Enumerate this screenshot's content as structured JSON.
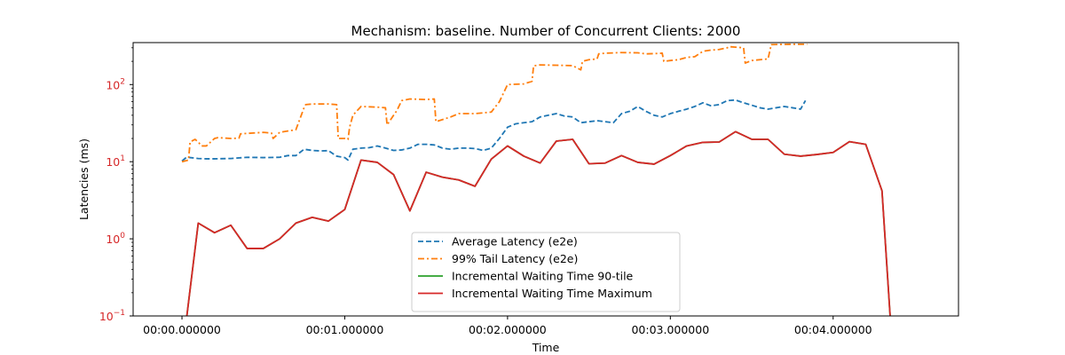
{
  "chart_data": {
    "type": "line",
    "title": "Mechanism: baseline. Number of Concurrent Clients: 2000",
    "xlabel": "Time",
    "ylabel": "Latencies (ms)",
    "ylabel_color": "#d62728",
    "yscale": "log",
    "xlim": [
      -0.3,
      4.77
    ],
    "ylim": [
      0.1,
      350
    ],
    "x_unit": "seconds",
    "xticks": [
      {
        "value": 0,
        "label": "00:00.000000"
      },
      {
        "value": 1,
        "label": "00:01.000000"
      },
      {
        "value": 2,
        "label": "00:02.000000"
      },
      {
        "value": 3,
        "label": "00:03.000000"
      },
      {
        "value": 4,
        "label": "00:04.000000"
      }
    ],
    "yticks": [
      {
        "value": 0.1,
        "base": "10",
        "exp": "−1"
      },
      {
        "value": 1,
        "base": "10",
        "exp": "0"
      },
      {
        "value": 10,
        "base": "10",
        "exp": "1"
      },
      {
        "value": 100,
        "base": "10",
        "exp": "2"
      }
    ],
    "legend": {
      "position": "lower center"
    },
    "series": [
      {
        "name": "Average Latency (e2e)",
        "color": "#1f77b4",
        "style": "dashed",
        "x": [
          0.0,
          0.03,
          0.05,
          0.1,
          0.15,
          0.2,
          0.3,
          0.4,
          0.5,
          0.6,
          0.65,
          0.7,
          0.75,
          0.8,
          0.85,
          0.9,
          0.95,
          1.0,
          1.02,
          1.05,
          1.1,
          1.15,
          1.2,
          1.25,
          1.3,
          1.35,
          1.4,
          1.45,
          1.5,
          1.55,
          1.6,
          1.65,
          1.7,
          1.75,
          1.8,
          1.85,
          1.9,
          1.95,
          2.0,
          2.05,
          2.1,
          2.15,
          2.2,
          2.25,
          2.3,
          2.35,
          2.4,
          2.45,
          2.5,
          2.55,
          2.6,
          2.65,
          2.7,
          2.75,
          2.8,
          2.85,
          2.9,
          2.95,
          3.0,
          3.05,
          3.1,
          3.15,
          3.2,
          3.25,
          3.3,
          3.35,
          3.4,
          3.45,
          3.5,
          3.55,
          3.6,
          3.65,
          3.7,
          3.75,
          3.8,
          3.83
        ],
        "y": [
          10.2,
          11.5,
          11.3,
          11.0,
          10.9,
          10.9,
          11.0,
          11.4,
          11.3,
          11.4,
          12.0,
          12.0,
          14.5,
          14.0,
          13.8,
          13.9,
          11.8,
          11.3,
          10.5,
          14.5,
          15.0,
          15.2,
          16.0,
          15.0,
          14.0,
          14.2,
          15.0,
          16.8,
          16.8,
          16.5,
          15.0,
          14.5,
          15.0,
          15.0,
          14.8,
          14.0,
          15.0,
          20.0,
          28.0,
          31.0,
          32.0,
          33.0,
          38.0,
          40.0,
          42.0,
          39.0,
          38.0,
          32.0,
          33.0,
          34.0,
          33.0,
          32.0,
          42.0,
          45.0,
          52.0,
          45.0,
          40.0,
          38.0,
          42.0,
          45.0,
          48.0,
          52.0,
          58.0,
          53.0,
          55.0,
          62.0,
          63.0,
          58.0,
          54.0,
          50.0,
          48.0,
          50.0,
          52.0,
          50.0,
          48.0,
          62.0
        ]
      },
      {
        "name": "99% Tail Latency (e2e)",
        "color": "#ff7f0e",
        "style": "dashdot",
        "x": [
          0.0,
          0.04,
          0.05,
          0.08,
          0.1,
          0.12,
          0.15,
          0.2,
          0.22,
          0.3,
          0.35,
          0.36,
          0.5,
          0.55,
          0.56,
          0.6,
          0.7,
          0.75,
          0.76,
          0.8,
          0.9,
          0.95,
          0.96,
          1.0,
          1.02,
          1.03,
          1.05,
          1.1,
          1.2,
          1.25,
          1.26,
          1.3,
          1.32,
          1.35,
          1.4,
          1.5,
          1.55,
          1.56,
          1.65,
          1.7,
          1.8,
          1.9,
          1.95,
          2.0,
          2.1,
          2.15,
          2.16,
          2.2,
          2.3,
          2.4,
          2.45,
          2.46,
          2.5,
          2.55,
          2.56,
          2.6,
          2.7,
          2.8,
          2.85,
          2.9,
          2.95,
          2.96,
          3.0,
          3.05,
          3.1,
          3.15,
          3.2,
          3.25,
          3.3,
          3.35,
          3.36,
          3.45,
          3.46,
          3.5,
          3.6,
          3.62,
          3.7,
          3.75,
          3.8,
          3.84
        ],
        "y": [
          10.0,
          10.5,
          18.0,
          19.5,
          18.0,
          16.0,
          16.0,
          20.0,
          20.5,
          20.0,
          20.2,
          23.0,
          24.0,
          23.5,
          20.0,
          24.0,
          26.0,
          50.0,
          55.0,
          56.0,
          56.0,
          55.0,
          20.0,
          20.0,
          19.5,
          28.0,
          40.0,
          52.0,
          51.0,
          50.0,
          30.0,
          40.0,
          46.0,
          62.0,
          65.0,
          64.0,
          65.0,
          33.0,
          38.0,
          42.0,
          42.0,
          44.0,
          60.0,
          100.0,
          102.0,
          110.0,
          175.0,
          180.0,
          178.0,
          176.0,
          155.0,
          200.0,
          210.0,
          215.0,
          250.0,
          255.0,
          260.0,
          258.0,
          250.0,
          252.0,
          255.0,
          200.0,
          205.0,
          210.0,
          225.0,
          230.0,
          270.0,
          280.0,
          285.0,
          300.0,
          310.0,
          300.0,
          190.0,
          205.0,
          215.0,
          330.0,
          332.0,
          333.0,
          333.0,
          333.0
        ]
      },
      {
        "name": "Incremental Waiting Time 90-tile",
        "color": "#2ca02c",
        "style": "solid",
        "x": [
          0.0,
          0.03,
          0.1,
          0.2,
          0.3,
          0.4,
          0.5,
          0.6,
          0.7,
          0.8,
          0.9,
          1.0,
          1.1,
          1.2,
          1.3,
          1.4,
          1.5,
          1.6,
          1.7,
          1.8,
          1.9,
          2.0,
          2.1,
          2.2,
          2.3,
          2.4,
          2.5,
          2.6,
          2.7,
          2.8,
          2.9,
          3.0,
          3.1,
          3.2,
          3.3,
          3.4,
          3.5,
          3.6,
          3.7,
          3.8,
          3.9,
          4.0,
          4.1,
          4.2,
          4.3,
          4.35,
          4.4
        ],
        "y": [
          0.08,
          0.1,
          1.6,
          1.2,
          1.5,
          0.75,
          0.75,
          1.0,
          1.6,
          1.9,
          1.7,
          2.4,
          10.5,
          9.8,
          6.8,
          2.3,
          7.3,
          6.3,
          5.8,
          4.8,
          10.8,
          16.0,
          11.8,
          9.6,
          18.5,
          19.5,
          9.4,
          9.6,
          12.0,
          9.8,
          9.3,
          12.0,
          16.0,
          17.8,
          18.0,
          24.5,
          19.5,
          19.5,
          12.5,
          11.8,
          12.4,
          13.2,
          18.2,
          16.8,
          4.2,
          0.1,
          0.05
        ]
      },
      {
        "name": "Incremental Waiting Time Maximum",
        "color": "#d62728",
        "style": "solid",
        "x": [
          0.0,
          0.03,
          0.1,
          0.2,
          0.3,
          0.4,
          0.5,
          0.6,
          0.7,
          0.8,
          0.9,
          1.0,
          1.1,
          1.2,
          1.3,
          1.4,
          1.5,
          1.6,
          1.7,
          1.8,
          1.9,
          2.0,
          2.1,
          2.2,
          2.3,
          2.4,
          2.5,
          2.6,
          2.7,
          2.8,
          2.9,
          3.0,
          3.1,
          3.2,
          3.3,
          3.4,
          3.5,
          3.6,
          3.7,
          3.8,
          3.9,
          4.0,
          4.1,
          4.2,
          4.3,
          4.35,
          4.4
        ],
        "y": [
          0.08,
          0.1,
          1.6,
          1.2,
          1.5,
          0.75,
          0.75,
          1.0,
          1.6,
          1.9,
          1.7,
          2.4,
          10.5,
          9.8,
          6.8,
          2.3,
          7.3,
          6.3,
          5.8,
          4.8,
          10.8,
          16.0,
          11.8,
          9.6,
          18.5,
          19.5,
          9.4,
          9.6,
          12.0,
          9.8,
          9.3,
          12.0,
          16.0,
          17.8,
          18.0,
          24.5,
          19.5,
          19.5,
          12.5,
          11.8,
          12.4,
          13.2,
          18.2,
          16.8,
          4.2,
          0.1,
          0.05
        ]
      }
    ]
  }
}
